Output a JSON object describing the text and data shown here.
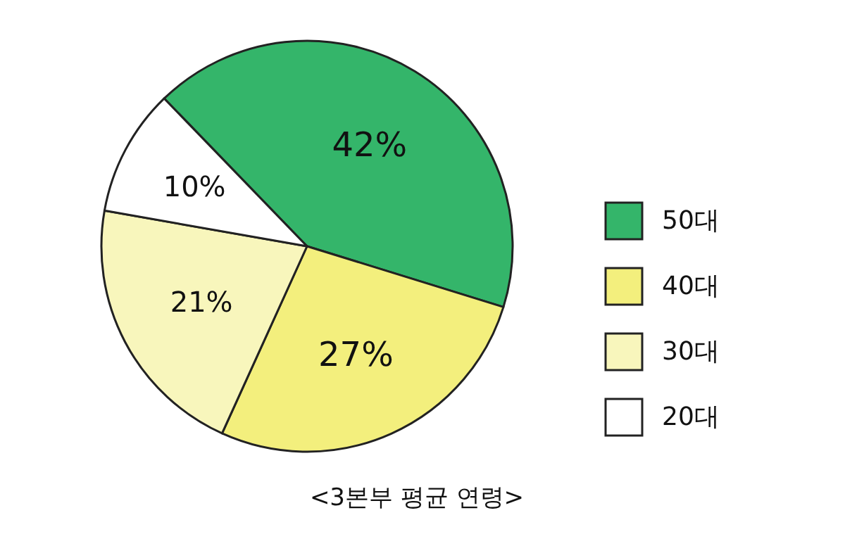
{
  "chart_data": {
    "type": "pie",
    "title": "<3본부 평균 연령>",
    "categories": [
      "50대",
      "40대",
      "30대",
      "20대"
    ],
    "values": [
      42,
      27,
      21,
      10
    ],
    "value_labels": [
      "42%",
      "27%",
      "21%",
      "10%"
    ],
    "colors": [
      "#34b56a",
      "#f3ef7d",
      "#f8f6bc",
      "#ffffff"
    ],
    "legend": "right"
  }
}
